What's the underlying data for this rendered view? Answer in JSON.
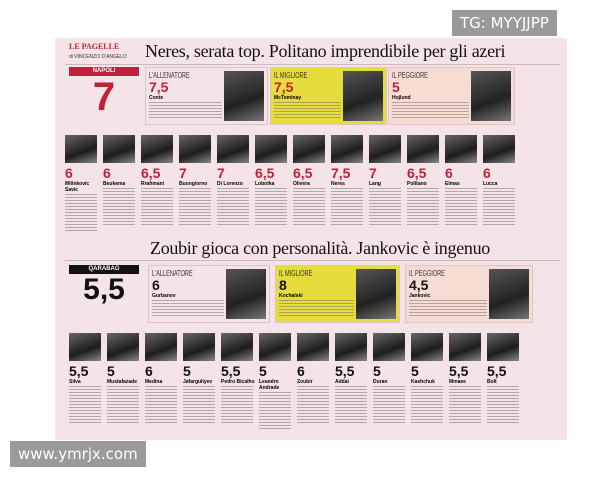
{
  "watermarks": {
    "top": "TG: MYYJJPP",
    "bottom": "www.ymrjx.com"
  },
  "section": {
    "kicker": "LE PAGELLE",
    "byline": "di VINCENZO D'ANGELO"
  },
  "napoli": {
    "headline": "Neres, serata top. Politano imprendibile per gli azeri",
    "team": "NAPOLI",
    "team_vote": "7",
    "team_color": "#c0203a",
    "vote_color": "#c0203a",
    "coach": {
      "label": "L'ALLENATORE",
      "vote": "7,5",
      "name": "Conte"
    },
    "best": {
      "label": "IL MIGLIORE",
      "vote": "7,5",
      "name": "McTominay",
      "bg": "#e6dc3c"
    },
    "worst": {
      "label": "IL PEGGIORE",
      "vote": "5",
      "name": "Hojlund",
      "bg": "#f6dcd2"
    },
    "players": [
      {
        "name": "Milinkovic Savic",
        "vote": "6"
      },
      {
        "name": "Beukema",
        "vote": "6"
      },
      {
        "name": "Rrahmani",
        "vote": "6,5"
      },
      {
        "name": "Buongiorno",
        "vote": "7"
      },
      {
        "name": "Di Lorenzo",
        "vote": "7"
      },
      {
        "name": "Lobotka",
        "vote": "6,5"
      },
      {
        "name": "Olivera",
        "vote": "6,5"
      },
      {
        "name": "Neres",
        "vote": "7,5"
      },
      {
        "name": "Lang",
        "vote": "7"
      },
      {
        "name": "Politano",
        "vote": "6,5"
      },
      {
        "name": "Elmas",
        "vote": "6"
      },
      {
        "name": "Lucca",
        "vote": "6"
      }
    ]
  },
  "qarabag": {
    "headline": "Zoubir gioca con personalità. Jankovic è ingenuo",
    "team": "QARABAG",
    "team_vote": "5,5",
    "team_color": "#111111",
    "vote_color": "#111111",
    "coach": {
      "label": "L'ALLENATORE",
      "vote": "6",
      "name": "Gurbanov"
    },
    "best": {
      "label": "IL MIGLIORE",
      "vote": "8",
      "name": "Kochalski",
      "bg": "#e6dc3c"
    },
    "worst": {
      "label": "IL PEGGIORE",
      "vote": "4,5",
      "name": "Jankovic",
      "bg": "#f6dcd2"
    },
    "players": [
      {
        "name": "Silva",
        "vote": "5,5"
      },
      {
        "name": "Mustafazade",
        "vote": "5"
      },
      {
        "name": "Medina",
        "vote": "6"
      },
      {
        "name": "Jafarguliyev",
        "vote": "5"
      },
      {
        "name": "Pedro Bicalho",
        "vote": "5,5"
      },
      {
        "name": "Leandro Andrade",
        "vote": "5"
      },
      {
        "name": "Zoubir",
        "vote": "6"
      },
      {
        "name": "Addai",
        "vote": "5,5"
      },
      {
        "name": "Duran",
        "vote": "5"
      },
      {
        "name": "Kashchuk",
        "vote": "5"
      },
      {
        "name": "Mmaee",
        "vote": "5,5"
      },
      {
        "name": "Bolt",
        "vote": "5,5"
      }
    ]
  }
}
